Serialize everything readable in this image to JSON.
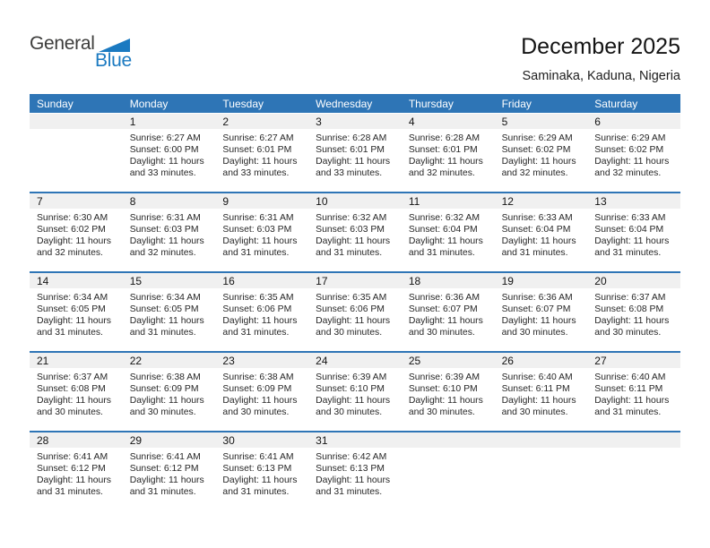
{
  "logo": {
    "word_top": "General",
    "word_bottom": "Blue"
  },
  "header": {
    "title": "December 2025",
    "subtitle": "Saminaka, Kaduna, Nigeria"
  },
  "labels": {
    "sunrise": "Sunrise:",
    "sunset": "Sunset:",
    "daylight": "Daylight:"
  },
  "weekdays": [
    "Sunday",
    "Monday",
    "Tuesday",
    "Wednesday",
    "Thursday",
    "Friday",
    "Saturday"
  ],
  "colors": {
    "accent": "#2E75B6",
    "number_band_bg": "#F0F0F0",
    "logo_blue": "#1B7AC1",
    "logo_dark": "#3C3C3B"
  },
  "weeks": [
    [
      null,
      {
        "n": "1",
        "sunrise": "6:27 AM",
        "sunset": "6:00 PM",
        "daylight1": "Daylight: 11 hours",
        "daylight2": "and 33 minutes."
      },
      {
        "n": "2",
        "sunrise": "6:27 AM",
        "sunset": "6:01 PM",
        "daylight1": "Daylight: 11 hours",
        "daylight2": "and 33 minutes."
      },
      {
        "n": "3",
        "sunrise": "6:28 AM",
        "sunset": "6:01 PM",
        "daylight1": "Daylight: 11 hours",
        "daylight2": "and 33 minutes."
      },
      {
        "n": "4",
        "sunrise": "6:28 AM",
        "sunset": "6:01 PM",
        "daylight1": "Daylight: 11 hours",
        "daylight2": "and 32 minutes."
      },
      {
        "n": "5",
        "sunrise": "6:29 AM",
        "sunset": "6:02 PM",
        "daylight1": "Daylight: 11 hours",
        "daylight2": "and 32 minutes."
      },
      {
        "n": "6",
        "sunrise": "6:29 AM",
        "sunset": "6:02 PM",
        "daylight1": "Daylight: 11 hours",
        "daylight2": "and 32 minutes."
      }
    ],
    [
      {
        "n": "7",
        "sunrise": "6:30 AM",
        "sunset": "6:02 PM",
        "daylight1": "Daylight: 11 hours",
        "daylight2": "and 32 minutes."
      },
      {
        "n": "8",
        "sunrise": "6:31 AM",
        "sunset": "6:03 PM",
        "daylight1": "Daylight: 11 hours",
        "daylight2": "and 32 minutes."
      },
      {
        "n": "9",
        "sunrise": "6:31 AM",
        "sunset": "6:03 PM",
        "daylight1": "Daylight: 11 hours",
        "daylight2": "and 31 minutes."
      },
      {
        "n": "10",
        "sunrise": "6:32 AM",
        "sunset": "6:03 PM",
        "daylight1": "Daylight: 11 hours",
        "daylight2": "and 31 minutes."
      },
      {
        "n": "11",
        "sunrise": "6:32 AM",
        "sunset": "6:04 PM",
        "daylight1": "Daylight: 11 hours",
        "daylight2": "and 31 minutes."
      },
      {
        "n": "12",
        "sunrise": "6:33 AM",
        "sunset": "6:04 PM",
        "daylight1": "Daylight: 11 hours",
        "daylight2": "and 31 minutes."
      },
      {
        "n": "13",
        "sunrise": "6:33 AM",
        "sunset": "6:04 PM",
        "daylight1": "Daylight: 11 hours",
        "daylight2": "and 31 minutes."
      }
    ],
    [
      {
        "n": "14",
        "sunrise": "6:34 AM",
        "sunset": "6:05 PM",
        "daylight1": "Daylight: 11 hours",
        "daylight2": "and 31 minutes."
      },
      {
        "n": "15",
        "sunrise": "6:34 AM",
        "sunset": "6:05 PM",
        "daylight1": "Daylight: 11 hours",
        "daylight2": "and 31 minutes."
      },
      {
        "n": "16",
        "sunrise": "6:35 AM",
        "sunset": "6:06 PM",
        "daylight1": "Daylight: 11 hours",
        "daylight2": "and 31 minutes."
      },
      {
        "n": "17",
        "sunrise": "6:35 AM",
        "sunset": "6:06 PM",
        "daylight1": "Daylight: 11 hours",
        "daylight2": "and 30 minutes."
      },
      {
        "n": "18",
        "sunrise": "6:36 AM",
        "sunset": "6:07 PM",
        "daylight1": "Daylight: 11 hours",
        "daylight2": "and 30 minutes."
      },
      {
        "n": "19",
        "sunrise": "6:36 AM",
        "sunset": "6:07 PM",
        "daylight1": "Daylight: 11 hours",
        "daylight2": "and 30 minutes."
      },
      {
        "n": "20",
        "sunrise": "6:37 AM",
        "sunset": "6:08 PM",
        "daylight1": "Daylight: 11 hours",
        "daylight2": "and 30 minutes."
      }
    ],
    [
      {
        "n": "21",
        "sunrise": "6:37 AM",
        "sunset": "6:08 PM",
        "daylight1": "Daylight: 11 hours",
        "daylight2": "and 30 minutes."
      },
      {
        "n": "22",
        "sunrise": "6:38 AM",
        "sunset": "6:09 PM",
        "daylight1": "Daylight: 11 hours",
        "daylight2": "and 30 minutes."
      },
      {
        "n": "23",
        "sunrise": "6:38 AM",
        "sunset": "6:09 PM",
        "daylight1": "Daylight: 11 hours",
        "daylight2": "and 30 minutes."
      },
      {
        "n": "24",
        "sunrise": "6:39 AM",
        "sunset": "6:10 PM",
        "daylight1": "Daylight: 11 hours",
        "daylight2": "and 30 minutes."
      },
      {
        "n": "25",
        "sunrise": "6:39 AM",
        "sunset": "6:10 PM",
        "daylight1": "Daylight: 11 hours",
        "daylight2": "and 30 minutes."
      },
      {
        "n": "26",
        "sunrise": "6:40 AM",
        "sunset": "6:11 PM",
        "daylight1": "Daylight: 11 hours",
        "daylight2": "and 30 minutes."
      },
      {
        "n": "27",
        "sunrise": "6:40 AM",
        "sunset": "6:11 PM",
        "daylight1": "Daylight: 11 hours",
        "daylight2": "and 31 minutes."
      }
    ],
    [
      {
        "n": "28",
        "sunrise": "6:41 AM",
        "sunset": "6:12 PM",
        "daylight1": "Daylight: 11 hours",
        "daylight2": "and 31 minutes."
      },
      {
        "n": "29",
        "sunrise": "6:41 AM",
        "sunset": "6:12 PM",
        "daylight1": "Daylight: 11 hours",
        "daylight2": "and 31 minutes."
      },
      {
        "n": "30",
        "sunrise": "6:41 AM",
        "sunset": "6:13 PM",
        "daylight1": "Daylight: 11 hours",
        "daylight2": "and 31 minutes."
      },
      {
        "n": "31",
        "sunrise": "6:42 AM",
        "sunset": "6:13 PM",
        "daylight1": "Daylight: 11 hours",
        "daylight2": "and 31 minutes."
      },
      null,
      null,
      null
    ]
  ]
}
